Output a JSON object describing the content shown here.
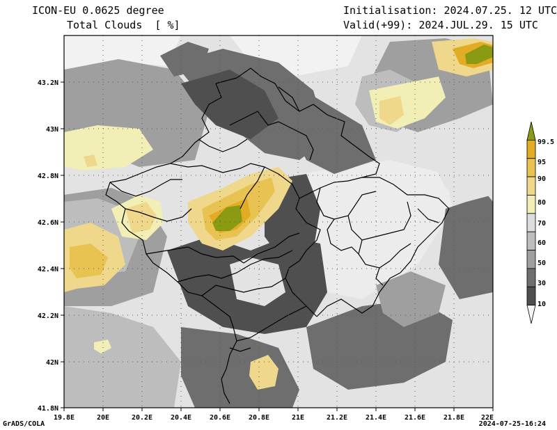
{
  "header": {
    "model": "ICON-EU 0.0625 degree",
    "field": "Total Clouds  [ %]",
    "init": "Initialisation: 2024.07.25. 12 UTC",
    "valid": "Valid(+99): 2024.JUL.29. 15 UTC"
  },
  "axes": {
    "lat_labels": [
      "43.2N",
      "43N",
      "42.8N",
      "42.6N",
      "42.4N",
      "42.2N",
      "42N",
      "41.8N"
    ],
    "lon_labels": [
      "19.8E",
      "20E",
      "20.2E",
      "20.4E",
      "20.6E",
      "20.8E",
      "21E",
      "21.2E",
      "21.4E",
      "21.6E",
      "21.8E",
      "22E"
    ]
  },
  "legend": {
    "levels": [
      "99.5",
      "95",
      "90",
      "80",
      "70",
      "60",
      "50",
      "30",
      "10"
    ],
    "colors": [
      "#8a9a12",
      "#e2ad24",
      "#e8c352",
      "#efd88c",
      "#f1efb6",
      "#dcdcdc",
      "#bdbdbd",
      "#9f9f9f",
      "#6e6e6e",
      "#4f4f4f",
      "#f5f5f5"
    ]
  },
  "footer": {
    "credit": "GrADS/COLA",
    "timestamp": "2024-07-25-16:24"
  }
}
